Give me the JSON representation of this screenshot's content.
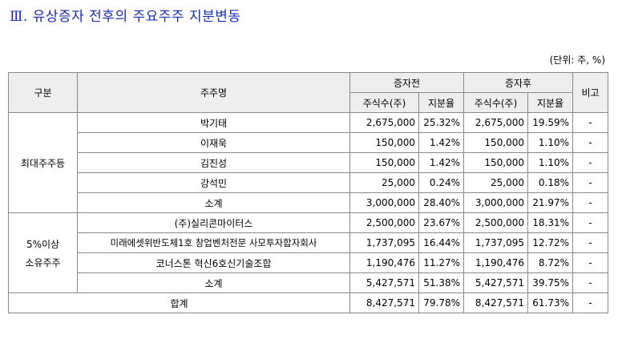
{
  "title": "Ⅲ. 유상증자 전후의 주요주주 지분변동",
  "unit_note": "(단위: 주, %)",
  "headers": {
    "category": "구분",
    "shareholder": "주주명",
    "before": "증자전",
    "after": "증자후",
    "remark": "비고",
    "shares": "주식수(주)",
    "ratio": "지분율"
  },
  "groups": [
    {
      "label": "최대주주등",
      "rows": [
        {
          "name": "박기태",
          "before_shares": "2,675,000",
          "before_ratio": "25.32%",
          "after_shares": "2,675,000",
          "after_ratio": "19.59%",
          "remark": "-"
        },
        {
          "name": "이재욱",
          "before_shares": "150,000",
          "before_ratio": "1.42%",
          "after_shares": "150,000",
          "after_ratio": "1.10%",
          "remark": "-"
        },
        {
          "name": "김진성",
          "before_shares": "150,000",
          "before_ratio": "1.42%",
          "after_shares": "150,000",
          "after_ratio": "1.10%",
          "remark": "-"
        },
        {
          "name": "강석민",
          "before_shares": "25,000",
          "before_ratio": "0.24%",
          "after_shares": "25,000",
          "after_ratio": "0.18%",
          "remark": "-"
        },
        {
          "name": "소계",
          "before_shares": "3,000,000",
          "before_ratio": "28.40%",
          "after_shares": "3,000,000",
          "after_ratio": "21.97%",
          "remark": "-"
        }
      ]
    },
    {
      "label_line1": "5%이상",
      "label_line2": "소유주주",
      "rows": [
        {
          "name": "(주)실리콘마이터스",
          "before_shares": "2,500,000",
          "before_ratio": "23.67%",
          "after_shares": "2,500,000",
          "after_ratio": "18.31%",
          "remark": "-"
        },
        {
          "name": "미래에셋위반도체1호 창업벤처전문 사모투자합자회사",
          "before_shares": "1,737,095",
          "before_ratio": "16.44%",
          "after_shares": "1,737,095",
          "after_ratio": "12.72%",
          "remark": "-"
        },
        {
          "name": "코너스톤 혁신6호신기술조합",
          "before_shares": "1,190,476",
          "before_ratio": "11.27%",
          "after_shares": "1,190,476",
          "after_ratio": "8.72%",
          "remark": "-"
        },
        {
          "name": "소계",
          "before_shares": "5,427,571",
          "before_ratio": "51.38%",
          "after_shares": "5,427,571",
          "after_ratio": "39.75%",
          "remark": "-"
        }
      ]
    }
  ],
  "total": {
    "name": "합계",
    "before_shares": "8,427,571",
    "before_ratio": "79.78%",
    "after_shares": "8,427,571",
    "after_ratio": "61.73%",
    "remark": "-"
  }
}
